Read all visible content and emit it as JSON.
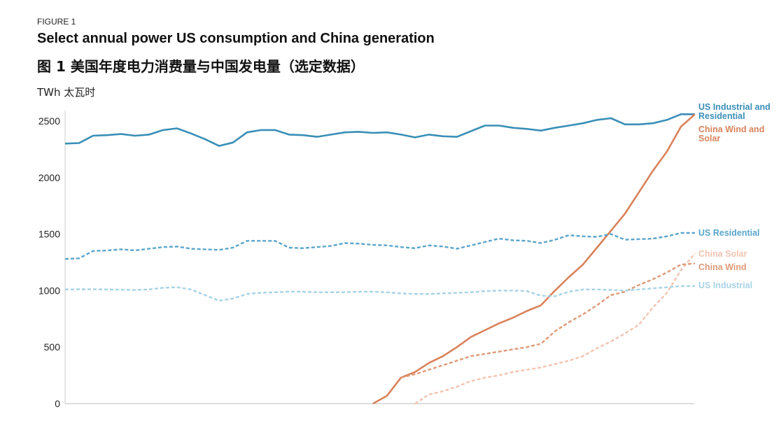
{
  "figure_label": "FIGURE 1",
  "title": "Select annual power US consumption and China generation",
  "title_zh": "图 1 美国年度电力消费量与中国发电量（选定数据）",
  "unit": "TWh  太瓦时",
  "chart_data": {
    "type": "line",
    "ylabel": "TWh 太瓦时",
    "ylim": [
      0,
      2600
    ],
    "yticks": [
      "0",
      "500",
      "1000",
      "1500",
      "2000",
      "2500"
    ],
    "grid": false,
    "x_tick_labels": "none",
    "series": [
      {
        "name": "US Industrial and Residential",
        "color": "#3a8fb7",
        "style": "solid",
        "values": [
          2300,
          2305,
          2370,
          2375,
          2385,
          2370,
          2380,
          2420,
          2435,
          2390,
          2340,
          2280,
          2310,
          2400,
          2420,
          2420,
          2380,
          2375,
          2360,
          2380,
          2400,
          2405,
          2395,
          2400,
          2380,
          2355,
          2380,
          2365,
          2360,
          2410,
          2460,
          2460,
          2440,
          2430,
          2415,
          2440,
          2460,
          2480,
          2510,
          2525,
          2470,
          2470,
          2480,
          2510,
          2560,
          2560
        ]
      },
      {
        "name": "China Wind and Solar",
        "color": "#d9825b",
        "style": "solid",
        "values": [
          null,
          null,
          null,
          null,
          null,
          null,
          null,
          null,
          null,
          null,
          null,
          null,
          null,
          null,
          null,
          null,
          null,
          null,
          null,
          null,
          null,
          null,
          0,
          70,
          230,
          280,
          360,
          420,
          500,
          590,
          650,
          710,
          760,
          820,
          870,
          1000,
          1120,
          1230,
          1380,
          1530,
          1680,
          1870,
          2060,
          2230,
          2450,
          2560
        ]
      },
      {
        "name": "US Residential",
        "color": "#5aa5cc",
        "style": "dashed",
        "values": [
          1280,
          1285,
          1350,
          1355,
          1365,
          1355,
          1370,
          1385,
          1390,
          1370,
          1365,
          1360,
          1380,
          1440,
          1440,
          1440,
          1380,
          1375,
          1385,
          1395,
          1420,
          1415,
          1405,
          1400,
          1385,
          1375,
          1400,
          1390,
          1370,
          1400,
          1430,
          1460,
          1445,
          1440,
          1420,
          1450,
          1490,
          1480,
          1475,
          1500,
          1450,
          1455,
          1460,
          1480,
          1510,
          1510
        ]
      },
      {
        "name": "China Solar",
        "color": "#f2c4b0",
        "style": "dashed",
        "values": [
          null,
          null,
          null,
          null,
          null,
          null,
          null,
          null,
          null,
          null,
          null,
          null,
          null,
          null,
          null,
          null,
          null,
          null,
          null,
          null,
          null,
          null,
          null,
          null,
          null,
          0,
          80,
          110,
          150,
          200,
          230,
          250,
          280,
          300,
          320,
          350,
          380,
          420,
          490,
          550,
          620,
          700,
          850,
          980,
          1180,
          1330
        ]
      },
      {
        "name": "China Wind",
        "color": "#de9a78",
        "style": "dashed",
        "values": [
          null,
          null,
          null,
          null,
          null,
          null,
          null,
          null,
          null,
          null,
          null,
          null,
          null,
          null,
          null,
          null,
          null,
          null,
          null,
          null,
          null,
          null,
          null,
          null,
          230,
          260,
          300,
          340,
          380,
          420,
          440,
          460,
          480,
          500,
          530,
          640,
          720,
          790,
          870,
          960,
          990,
          1050,
          1100,
          1160,
          1230,
          1240
        ]
      },
      {
        "name": "US Industrial",
        "color": "#a8d3e6",
        "style": "dashed",
        "values": [
          1010,
          1012,
          1012,
          1010,
          1008,
          1005,
          1010,
          1025,
          1030,
          1010,
          960,
          910,
          930,
          970,
          980,
          985,
          990,
          990,
          985,
          985,
          985,
          990,
          990,
          985,
          975,
          970,
          970,
          975,
          980,
          985,
          995,
          1000,
          1000,
          995,
          955,
          950,
          990,
          1010,
          1010,
          1005,
          1000,
          1010,
          1020,
          1030,
          1040,
          1040
        ]
      }
    ]
  }
}
